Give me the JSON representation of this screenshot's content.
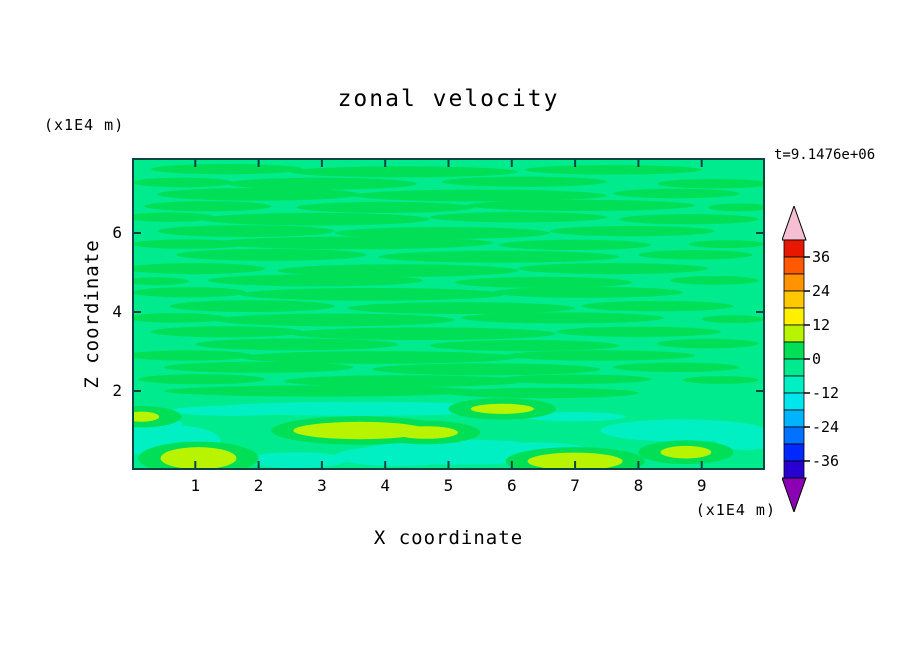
{
  "chart_data": {
    "type": "heatmap",
    "title": "zonal velocity",
    "xlabel": "X coordinate",
    "ylabel": "Z coordinate",
    "x_axis_unit_label": "(x1E4 m)",
    "y_axis_unit_label": "(x1E4 m)",
    "time_annotation": "t=9.1476e+06",
    "xlim": [
      0,
      10
    ],
    "ylim": [
      0,
      7.9
    ],
    "x_ticks": [
      1,
      2,
      3,
      4,
      5,
      6,
      7,
      8,
      9
    ],
    "y_ticks": [
      2,
      4,
      6
    ],
    "grid": false,
    "axis_color": "#0d4444",
    "colorbar": {
      "position": "right",
      "tick_labels": [
        36,
        24,
        12,
        0,
        -12,
        -24,
        -36
      ],
      "level_step": 6,
      "levels_top_to_bottom": [
        42,
        36,
        30,
        24,
        18,
        12,
        6,
        0,
        -6,
        -12,
        -18,
        -24,
        -30,
        -36,
        -42
      ],
      "band_colors_top_to_bottom": [
        "#e81800",
        "#ff5a00",
        "#ff9400",
        "#ffc800",
        "#fff000",
        "#b8f400",
        "#00df55",
        "#00ea8e",
        "#00f0c3",
        "#00e6ee",
        "#00b4ff",
        "#0072ff",
        "#0028ff",
        "#2800d2"
      ],
      "over_color": "#f5bed2",
      "under_color": "#8c00b4"
    },
    "approx_grid": {
      "value_note": "coarse field estimate read from contour fill colors, colorbar units",
      "x_centers": [
        0.5,
        1.5,
        2.5,
        3.5,
        4.5,
        5.5,
        6.5,
        7.5,
        8.5,
        9.5
      ],
      "z_centers_top_to_bottom": [
        7.4,
        6.4,
        5.4,
        4.4,
        3.4,
        2.4,
        1.5,
        0.5
      ],
      "values_rows_top_to_bottom": [
        [
          -3,
          3,
          -3,
          3,
          3,
          -3,
          3,
          -3,
          3,
          -3
        ],
        [
          3,
          -3,
          3,
          -3,
          3,
          3,
          -3,
          3,
          -3,
          3
        ],
        [
          -3,
          3,
          3,
          -3,
          3,
          -3,
          3,
          3,
          -3,
          -3
        ],
        [
          3,
          -3,
          3,
          3,
          -3,
          3,
          -3,
          3,
          3,
          -3
        ],
        [
          -3,
          3,
          -3,
          3,
          3,
          -3,
          3,
          -3,
          3,
          -3
        ],
        [
          3,
          -3,
          3,
          -3,
          3,
          3,
          -3,
          3,
          -3,
          3
        ],
        [
          -3,
          -8,
          -8,
          3,
          -8,
          -3,
          -8,
          -3,
          -8,
          -8
        ],
        [
          8,
          -3,
          -8,
          8,
          -8,
          -8,
          8,
          8,
          -8,
          -3
        ]
      ]
    },
    "field_regions": {
      "background": {
        "level": [
          -6,
          0
        ],
        "color": "#00ea8e"
      },
      "streaks": {
        "level": [
          0,
          6
        ],
        "color": "#00df55",
        "blobs": [
          [
            1.5,
            7.62,
            1.2,
            0.13
          ],
          [
            4.3,
            7.55,
            1.8,
            0.14
          ],
          [
            7.6,
            7.6,
            1.4,
            0.12
          ],
          [
            0.8,
            7.28,
            0.8,
            0.12
          ],
          [
            3.0,
            7.25,
            1.5,
            0.15
          ],
          [
            6.2,
            7.3,
            1.3,
            0.13
          ],
          [
            9.2,
            7.25,
            0.9,
            0.12
          ],
          [
            2.0,
            6.98,
            1.6,
            0.16
          ],
          [
            5.5,
            6.95,
            2.0,
            0.15
          ],
          [
            8.6,
            7.0,
            1.0,
            0.12
          ],
          [
            1.2,
            6.68,
            1.0,
            0.13
          ],
          [
            4.0,
            6.65,
            1.4,
            0.14
          ],
          [
            7.1,
            6.7,
            1.8,
            0.14
          ],
          [
            9.6,
            6.65,
            0.5,
            0.1
          ],
          [
            0.6,
            6.4,
            0.7,
            0.12
          ],
          [
            2.9,
            6.35,
            1.8,
            0.16
          ],
          [
            6.1,
            6.4,
            1.4,
            0.13
          ],
          [
            8.8,
            6.35,
            1.1,
            0.13
          ],
          [
            1.8,
            6.05,
            1.4,
            0.15
          ],
          [
            4.9,
            6.0,
            1.7,
            0.15
          ],
          [
            7.9,
            6.05,
            1.3,
            0.13
          ],
          [
            0.9,
            5.72,
            0.9,
            0.12
          ],
          [
            3.5,
            5.75,
            2.2,
            0.16
          ],
          [
            7.0,
            5.7,
            1.2,
            0.13
          ],
          [
            9.4,
            5.72,
            0.6,
            0.1
          ],
          [
            2.2,
            5.45,
            1.5,
            0.15
          ],
          [
            5.8,
            5.4,
            1.9,
            0.15
          ],
          [
            8.9,
            5.45,
            0.9,
            0.12
          ],
          [
            1.0,
            5.1,
            1.1,
            0.14
          ],
          [
            4.2,
            5.05,
            1.9,
            0.16
          ],
          [
            7.6,
            5.1,
            1.5,
            0.14
          ],
          [
            2.9,
            4.8,
            1.7,
            0.15
          ],
          [
            6.5,
            4.75,
            1.4,
            0.14
          ],
          [
            9.2,
            4.8,
            0.7,
            0.11
          ],
          [
            0.4,
            4.78,
            0.5,
            0.1
          ],
          [
            0.9,
            4.5,
            0.9,
            0.13
          ],
          [
            3.8,
            4.45,
            2.1,
            0.16
          ],
          [
            7.2,
            4.5,
            1.5,
            0.14
          ],
          [
            1.9,
            4.15,
            1.3,
            0.15
          ],
          [
            5.2,
            4.1,
            1.8,
            0.15
          ],
          [
            8.3,
            4.15,
            1.2,
            0.13
          ],
          [
            0.7,
            3.85,
            0.8,
            0.12
          ],
          [
            3.2,
            3.8,
            1.9,
            0.16
          ],
          [
            6.8,
            3.85,
            1.6,
            0.14
          ],
          [
            9.5,
            3.82,
            0.5,
            0.1
          ],
          [
            1.5,
            3.5,
            1.2,
            0.14
          ],
          [
            4.6,
            3.45,
            2.1,
            0.16
          ],
          [
            8.0,
            3.5,
            1.3,
            0.13
          ],
          [
            2.6,
            3.18,
            1.6,
            0.15
          ],
          [
            6.2,
            3.15,
            1.5,
            0.14
          ],
          [
            9.1,
            3.2,
            0.8,
            0.12
          ],
          [
            0.9,
            2.9,
            1.0,
            0.13
          ],
          [
            3.9,
            2.85,
            2.2,
            0.16
          ],
          [
            7.4,
            2.9,
            1.5,
            0.13
          ],
          [
            2.0,
            2.6,
            1.5,
            0.14
          ],
          [
            5.6,
            2.55,
            1.8,
            0.15
          ],
          [
            8.6,
            2.6,
            1.0,
            0.12
          ],
          [
            1.1,
            2.3,
            1.0,
            0.13
          ],
          [
            4.3,
            2.25,
            1.9,
            0.15
          ],
          [
            7.0,
            2.3,
            1.2,
            0.12
          ],
          [
            9.3,
            2.28,
            0.6,
            0.1
          ],
          [
            3.0,
            2.0,
            2.5,
            0.14
          ],
          [
            6.5,
            1.95,
            1.5,
            0.13
          ]
        ]
      },
      "cyan_patches": {
        "level": [
          -12,
          -6
        ],
        "color": "#00f0c3",
        "blobs": [
          [
            3.6,
            1.55,
            2.4,
            0.18
          ],
          [
            1.6,
            1.5,
            1.0,
            0.13
          ],
          [
            0.5,
            0.75,
            0.9,
            0.4
          ],
          [
            0.3,
            1.15,
            0.5,
            0.2
          ],
          [
            5.2,
            0.45,
            1.6,
            0.32
          ],
          [
            4.2,
            0.35,
            1.0,
            0.25
          ],
          [
            6.4,
            0.5,
            0.8,
            0.2
          ],
          [
            2.6,
            0.25,
            0.8,
            0.2
          ],
          [
            8.7,
            1.0,
            1.3,
            0.28
          ],
          [
            9.7,
            0.8,
            0.5,
            0.3
          ],
          [
            7.0,
            1.35,
            0.8,
            0.12
          ]
        ]
      },
      "warm_blobs": {
        "level": [
          6,
          12
        ],
        "color": "#b8f400",
        "blobs": [
          [
            1.05,
            0.3,
            0.6,
            0.28
          ],
          [
            3.6,
            1.0,
            1.05,
            0.22
          ],
          [
            4.65,
            0.95,
            0.5,
            0.16
          ],
          [
            5.85,
            1.55,
            0.5,
            0.13
          ],
          [
            7.0,
            0.22,
            0.75,
            0.22
          ],
          [
            8.75,
            0.45,
            0.4,
            0.16
          ],
          [
            0.15,
            1.35,
            0.28,
            0.13
          ]
        ]
      }
    }
  }
}
